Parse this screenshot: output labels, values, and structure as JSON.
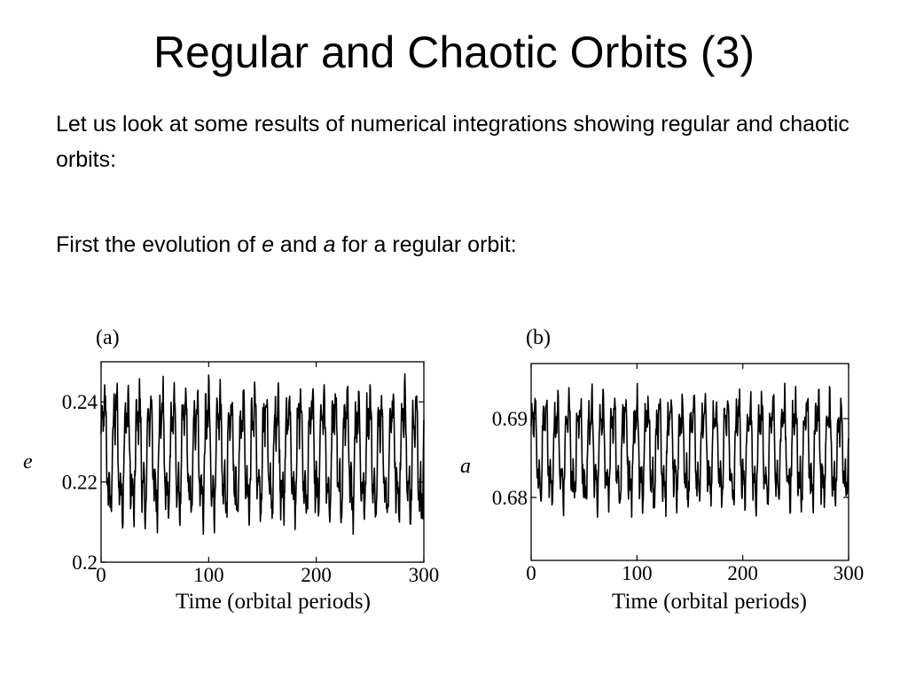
{
  "slide": {
    "title": "Regular and Chaotic Orbits (3)",
    "paragraph1": "Let us look at some results of numerical integrations showing regular and chaotic orbits:",
    "paragraph2": {
      "before_e": "First the evolution of ",
      "e": "e",
      "middle": " and ",
      "a": "a",
      "after_a": " for a regular orbit:"
    }
  },
  "chart_data": [
    {
      "type": "line",
      "panel_label": "(a)",
      "xlabel": "Time (orbital periods)",
      "ylabel": "e",
      "xlim": [
        0,
        300
      ],
      "ylim": [
        0.2,
        0.25
      ],
      "xticks": [
        0,
        100,
        200,
        300
      ],
      "yticks": [
        0.2,
        0.22,
        0.24
      ],
      "ytick_labels": [
        "0.2",
        "0.22",
        "0.24"
      ],
      "series": [
        {
          "cycles": 28,
          "max": 0.247,
          "min": 0.207,
          "mean": 0.228,
          "color": "#000000"
        }
      ]
    },
    {
      "type": "line",
      "panel_label": "(b)",
      "xlabel": "Time (orbital periods)",
      "ylabel": "a",
      "xlim": [
        0,
        300
      ],
      "ylim": [
        0.672,
        0.697
      ],
      "xticks": [
        0,
        100,
        200,
        300
      ],
      "yticks": [
        0.68,
        0.69
      ],
      "ytick_labels": [
        "0.68",
        "0.69"
      ],
      "series": [
        {
          "cycles": 28,
          "max": 0.6945,
          "min": 0.6775,
          "mean": 0.686,
          "color": "#000000"
        }
      ]
    }
  ]
}
